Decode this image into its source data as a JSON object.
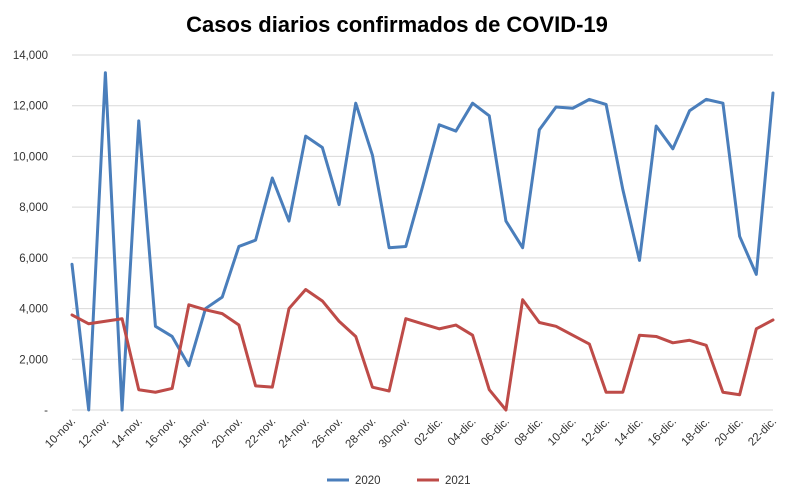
{
  "chart_data": {
    "type": "line",
    "title": "Casos diarios confirmados de COVID-19",
    "xlabel": "",
    "ylabel": "",
    "x": [
      "10-nov.",
      "11-nov.",
      "12-nov.",
      "13-nov.",
      "14-nov.",
      "15-nov.",
      "16-nov.",
      "17-nov.",
      "18-nov.",
      "19-nov.",
      "20-nov.",
      "21-nov.",
      "22-nov.",
      "23-nov.",
      "24-nov.",
      "25-nov.",
      "26-nov.",
      "27-nov.",
      "28-nov.",
      "29-nov.",
      "30-nov.",
      "01-dic.",
      "02-dic.",
      "03-dic.",
      "04-dic.",
      "05-dic.",
      "06-dic.",
      "07-dic.",
      "08-dic.",
      "09-dic.",
      "10-dic.",
      "11-dic.",
      "12-dic.",
      "13-dic.",
      "14-dic.",
      "15-dic.",
      "16-dic.",
      "17-dic.",
      "18-dic.",
      "19-dic.",
      "20-dic.",
      "21-dic.",
      "22-dic."
    ],
    "x_tick_labels": [
      "10-nov.",
      "12-nov.",
      "14-nov.",
      "16-nov.",
      "18-nov.",
      "20-nov.",
      "22-nov.",
      "24-nov.",
      "26-nov.",
      "28-nov.",
      "30-nov.",
      "02-dic.",
      "04-dic.",
      "06-dic.",
      "08-dic.",
      "10-dic.",
      "12-dic.",
      "14-dic.",
      "16-dic.",
      "18-dic.",
      "20-dic.",
      "22-dic."
    ],
    "y_tick_labels": [
      "-",
      "2,000",
      "4,000",
      "6,000",
      "8,000",
      "10,000",
      "12,000",
      "14,000"
    ],
    "ylim": [
      0,
      14000
    ],
    "grid": true,
    "legend_position": "bottom",
    "series": [
      {
        "name": "2020",
        "color": "#4A7EBB",
        "values": [
          5750,
          0,
          13300,
          0,
          11400,
          3300,
          2900,
          1750,
          4000,
          4450,
          6450,
          6700,
          9150,
          7450,
          10800,
          10350,
          8100,
          12100,
          10050,
          6400,
          6450,
          8800,
          11250,
          11000,
          12100,
          11600,
          7450,
          6400,
          11050,
          11950,
          11900,
          12250,
          12050,
          8700,
          5900,
          11200,
          10300,
          11800,
          12250,
          12100,
          6850,
          5350,
          12500
        ]
      },
      {
        "name": "2021",
        "color": "#BE4B48",
        "values": [
          3750,
          3400,
          3500,
          3600,
          800,
          700,
          850,
          4150,
          3950,
          3800,
          3350,
          950,
          900,
          4000,
          4750,
          4300,
          3500,
          2900,
          900,
          750,
          3600,
          3400,
          3200,
          3350,
          2950,
          800,
          0,
          4350,
          3450,
          3300,
          2950,
          2600,
          700,
          700,
          2950,
          2900,
          2650,
          2750,
          2550,
          700,
          600,
          3200,
          3550
        ]
      }
    ]
  }
}
